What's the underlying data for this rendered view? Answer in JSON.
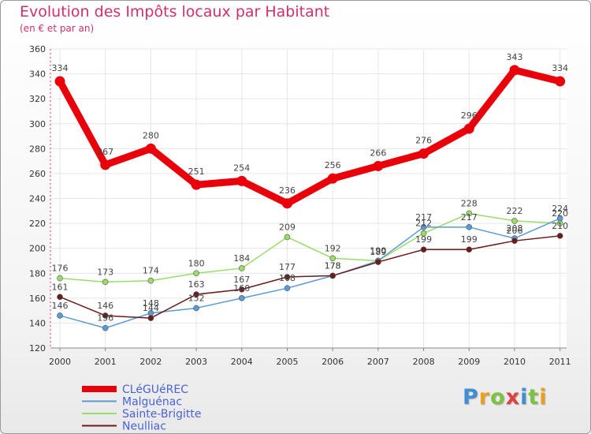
{
  "chart_data": {
    "type": "line",
    "title": "Evolution des Impôts locaux par Habitant",
    "subtitle": "(en € et par an)",
    "xlabel": "",
    "ylabel": "",
    "ylim": [
      120,
      360
    ],
    "yticks": [
      "120",
      "140",
      "160",
      "180",
      "200",
      "220",
      "240",
      "260",
      "280",
      "300",
      "320",
      "340",
      "360"
    ],
    "categories": [
      "2000",
      "2001",
      "2002",
      "2003",
      "2004",
      "2005",
      "2006",
      "2007",
      "2008",
      "2009",
      "2010",
      "2011"
    ],
    "series": [
      {
        "name": "CLéGUéREC",
        "color": "#e8000b",
        "values": [
          334,
          267,
          280,
          251,
          254,
          236,
          256,
          266,
          276,
          296,
          343,
          334
        ],
        "labels": [
          "334",
          "267",
          "280",
          "251",
          "254",
          "236",
          "256",
          "266",
          "276",
          "296",
          "343",
          "334"
        ]
      },
      {
        "name": "Malguénac",
        "color": "#5b9bd5",
        "values": [
          146,
          136,
          148,
          152,
          160,
          168,
          178,
          190,
          217,
          217,
          208,
          224
        ],
        "labels": [
          "146",
          "136",
          "148",
          "152",
          "160",
          "168",
          "178",
          "190",
          "217",
          "217",
          "208",
          "224"
        ]
      },
      {
        "name": "Sainte-Brigitte",
        "color": "#99dd66",
        "values": [
          176,
          173,
          174,
          180,
          184,
          209,
          192,
          190,
          212,
          228,
          222,
          220
        ],
        "labels": [
          "176",
          "173",
          "174",
          "180",
          "184",
          "209",
          "192",
          "190",
          "212",
          "228",
          "222",
          "220"
        ]
      },
      {
        "name": "Neulliac",
        "color": "#6b1b1b",
        "values": [
          161,
          146,
          144,
          163,
          167,
          177,
          178,
          189,
          199,
          199,
          206,
          210
        ],
        "labels": [
          "161",
          "146",
          "144",
          "163",
          "167",
          "177",
          "178",
          "189",
          "199",
          "199",
          "206",
          "210"
        ]
      }
    ],
    "legend": "bottom-left"
  },
  "brand": {
    "letters": [
      "P",
      "r",
      "o",
      "x",
      "i",
      "t",
      "i"
    ],
    "colors": [
      "#3f8fd2",
      "#e8a020",
      "#7cc242",
      "#e04040",
      "#3f8fd2",
      "#7cc242",
      "#e8a020"
    ]
  }
}
